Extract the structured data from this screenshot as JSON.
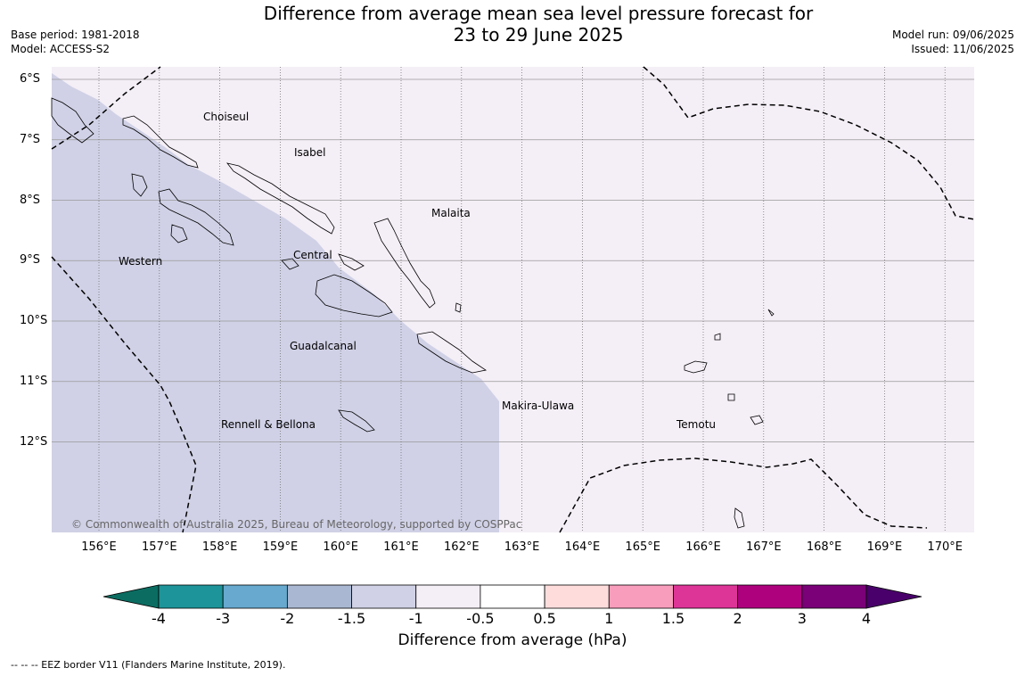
{
  "title": {
    "line1": "Difference from average mean sea level pressure forecast for",
    "line2": "23 to 29 June 2025"
  },
  "meta_left": {
    "base_period": "Base period: 1981-2018",
    "model": "Model: ACCESS-S2"
  },
  "meta_right": {
    "model_run": "Model run: 09/06/2025",
    "issued": "Issued: 11/06/2025"
  },
  "map": {
    "latitude_labels": [
      "6°S",
      "7°S",
      "8°S",
      "9°S",
      "10°S",
      "11°S",
      "12°S"
    ],
    "longitude_labels": [
      "156°E",
      "157°E",
      "158°E",
      "159°E",
      "160°E",
      "161°E",
      "162°E",
      "163°E",
      "164°E",
      "165°E",
      "166°E",
      "167°E",
      "168°E",
      "169°E",
      "170°E"
    ],
    "region_labels": {
      "choiseul": "Choiseul",
      "isabel": "Isabel",
      "malaita": "Malaita",
      "western": "Western",
      "central": "Central",
      "guadalcanal": "Guadalcanal",
      "makira": "Makira-Ulawa",
      "rennell": "Rennell & Bellona",
      "temotu": "Temotu"
    },
    "copyright": "© Commonwealth of Australia 2025, Bureau of Meteorology, supported by COSPPac",
    "fill_colors": {
      "minus_1_5_to_minus_1": "#d0d1e6",
      "minus_1_to_minus_0_5": "#f4eef6"
    }
  },
  "colorbar": {
    "tick_labels": [
      "-4",
      "-3",
      "-2",
      "-1.5",
      "-1",
      "-0.5",
      "0.5",
      "1",
      "1.5",
      "2",
      "3",
      "4"
    ],
    "colors": [
      "#0b6d62",
      "#1c9499",
      "#67a9cf",
      "#a9b7d2",
      "#d0d1e6",
      "#f4eef6",
      "#ffffff",
      "#ffdcdc",
      "#f89dbb",
      "#dd3497",
      "#ae017e",
      "#7a0177",
      "#49006a"
    ],
    "label": "Difference from average (hPa)"
  },
  "eez_note": "--  --  -- EEZ border V11 (Flanders Marine Institute, 2019)."
}
